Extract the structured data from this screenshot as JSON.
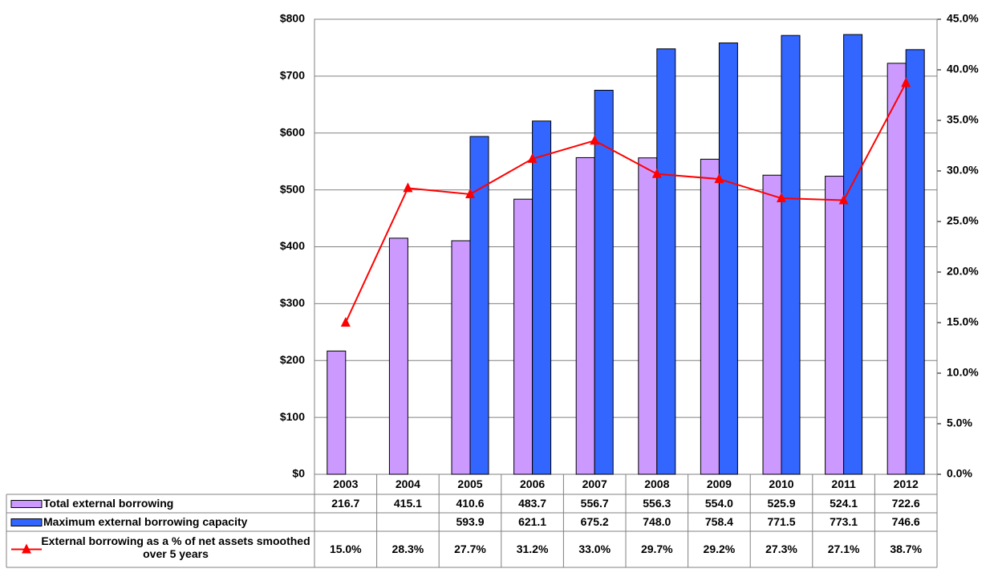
{
  "chart_data": {
    "type": "bar-line",
    "categories": [
      "2003",
      "2004",
      "2005",
      "2006",
      "2007",
      "2008",
      "2009",
      "2010",
      "2011",
      "2012"
    ],
    "series": [
      {
        "name": "Total external borrowing",
        "color": "#cc99ff",
        "type": "bar",
        "values": [
          216.7,
          415.1,
          410.6,
          483.7,
          556.7,
          556.3,
          554,
          525.9,
          524.1,
          722.6
        ],
        "value_labels": [
          "216.7",
          "415.1",
          "410.6",
          "483.7",
          "556.7",
          "556.3",
          "554.0",
          "525.9",
          "524.1",
          "722.6"
        ]
      },
      {
        "name": "Maximum external borrowing capacity",
        "color": "#3366ff",
        "type": "bar",
        "values": [
          null,
          null,
          593.9,
          621.1,
          675.2,
          748,
          758.4,
          771.5,
          773.1,
          746.6
        ],
        "value_labels": [
          null,
          null,
          "593.9",
          "621.1",
          "675.2",
          "748.0",
          "758.4",
          "771.5",
          "773.1",
          "746.6"
        ]
      },
      {
        "name": "External borrowing as a % of net assets smoothed over 5 years",
        "color": "#ff0000",
        "type": "line",
        "axis": "y2",
        "values": [
          15,
          28.3,
          27.7,
          31.2,
          33,
          29.7,
          29.2,
          27.3,
          27.1,
          38.7
        ],
        "value_labels": [
          "15.0%",
          "28.3%",
          "27.7%",
          "31.2%",
          "33.0%",
          "29.7%",
          "29.2%",
          "27.3%",
          "27.1%",
          "38.7%"
        ]
      }
    ],
    "ylim": [
      0,
      800
    ],
    "yticks": [
      {
        "value": 0,
        "label": "$0"
      },
      {
        "value": 100,
        "label": "$100"
      },
      {
        "value": 200,
        "label": "$200"
      },
      {
        "value": 300,
        "label": "$300"
      },
      {
        "value": 400,
        "label": "$400"
      },
      {
        "value": 500,
        "label": "$500"
      },
      {
        "value": 600,
        "label": "$600"
      },
      {
        "value": 700,
        "label": "$700"
      },
      {
        "value": 800,
        "label": "$800"
      }
    ],
    "y2lim": [
      0,
      45
    ],
    "y2ticks": [
      {
        "value": 0,
        "label": "0.0%"
      },
      {
        "value": 5,
        "label": "5.0%"
      },
      {
        "value": 10,
        "label": "10.0%"
      },
      {
        "value": 15,
        "label": "15.0%"
      },
      {
        "value": 20,
        "label": "20.0%"
      },
      {
        "value": 25,
        "label": "25.0%"
      },
      {
        "value": 30,
        "label": "30.0%"
      },
      {
        "value": 35,
        "label": "35.0%"
      },
      {
        "value": 40,
        "label": "40.0%"
      },
      {
        "value": 45,
        "label": "45.0%"
      }
    ],
    "grid": true
  }
}
